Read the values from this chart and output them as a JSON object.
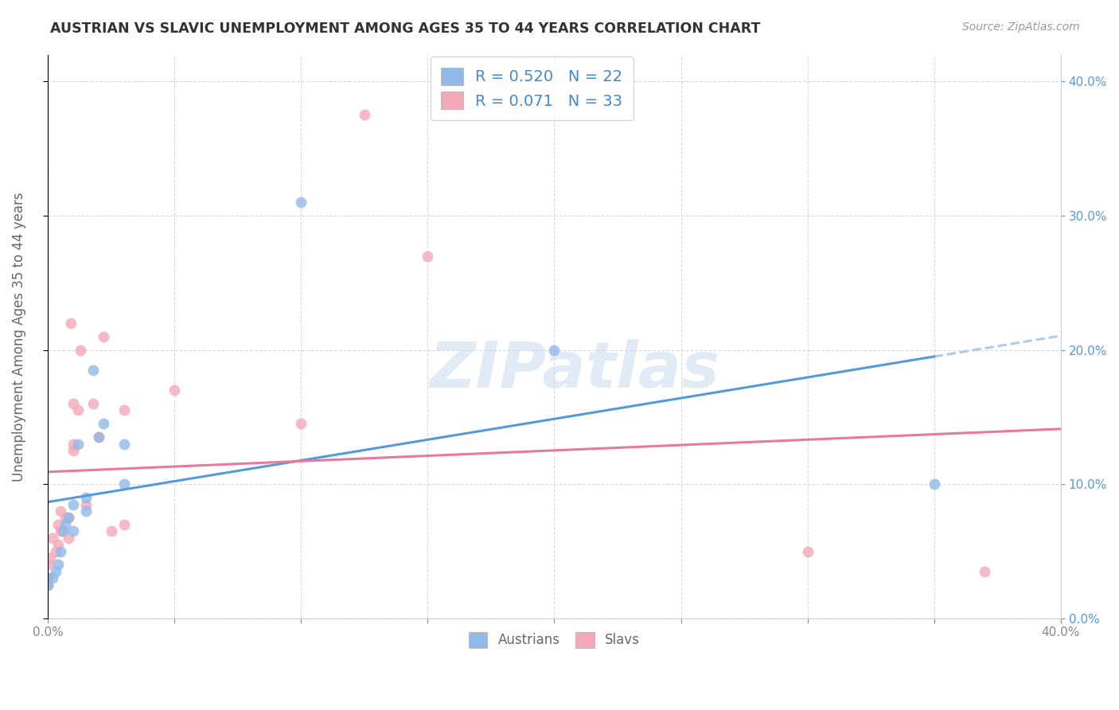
{
  "title": "AUSTRIAN VS SLAVIC UNEMPLOYMENT AMONG AGES 35 TO 44 YEARS CORRELATION CHART",
  "source": "Source: ZipAtlas.com",
  "ylabel": "Unemployment Among Ages 35 to 44 years",
  "xlim": [
    0.0,
    0.4
  ],
  "ylim": [
    0.0,
    0.42
  ],
  "background_color": "#ffffff",
  "grid_color": "#d0d0d0",
  "watermark_text": "ZIPatlas",
  "austrians_color": "#90b8e8",
  "slavs_color": "#f4a8b8",
  "aus_line_color": "#5599dd",
  "slav_line_color": "#e878a0",
  "dashed_line_color": "#aaccee",
  "austrians_R": 0.52,
  "austrians_N": 22,
  "slavs_R": 0.071,
  "slavs_N": 33,
  "legend_text_color": "#4488cc",
  "marker_size": 100,
  "line_width": 2.2,
  "austrians_x": [
    0.0,
    0.0,
    0.002,
    0.003,
    0.004,
    0.005,
    0.006,
    0.007,
    0.008,
    0.01,
    0.01,
    0.012,
    0.015,
    0.015,
    0.018,
    0.02,
    0.022,
    0.03,
    0.03,
    0.1,
    0.2,
    0.35
  ],
  "austrians_y": [
    0.025,
    0.03,
    0.03,
    0.035,
    0.04,
    0.05,
    0.065,
    0.07,
    0.075,
    0.065,
    0.085,
    0.13,
    0.08,
    0.09,
    0.185,
    0.135,
    0.145,
    0.1,
    0.13,
    0.31,
    0.2,
    0.1
  ],
  "slavs_x": [
    0.0,
    0.0,
    0.0,
    0.001,
    0.002,
    0.003,
    0.004,
    0.004,
    0.005,
    0.005,
    0.006,
    0.007,
    0.008,
    0.008,
    0.009,
    0.01,
    0.01,
    0.01,
    0.012,
    0.013,
    0.015,
    0.018,
    0.02,
    0.022,
    0.025,
    0.03,
    0.03,
    0.05,
    0.1,
    0.125,
    0.15,
    0.3,
    0.37
  ],
  "slavs_y": [
    0.025,
    0.03,
    0.04,
    0.045,
    0.06,
    0.05,
    0.055,
    0.07,
    0.065,
    0.08,
    0.065,
    0.075,
    0.06,
    0.075,
    0.22,
    0.125,
    0.13,
    0.16,
    0.155,
    0.2,
    0.085,
    0.16,
    0.135,
    0.21,
    0.065,
    0.07,
    0.155,
    0.17,
    0.145,
    0.375,
    0.27,
    0.05,
    0.035
  ]
}
